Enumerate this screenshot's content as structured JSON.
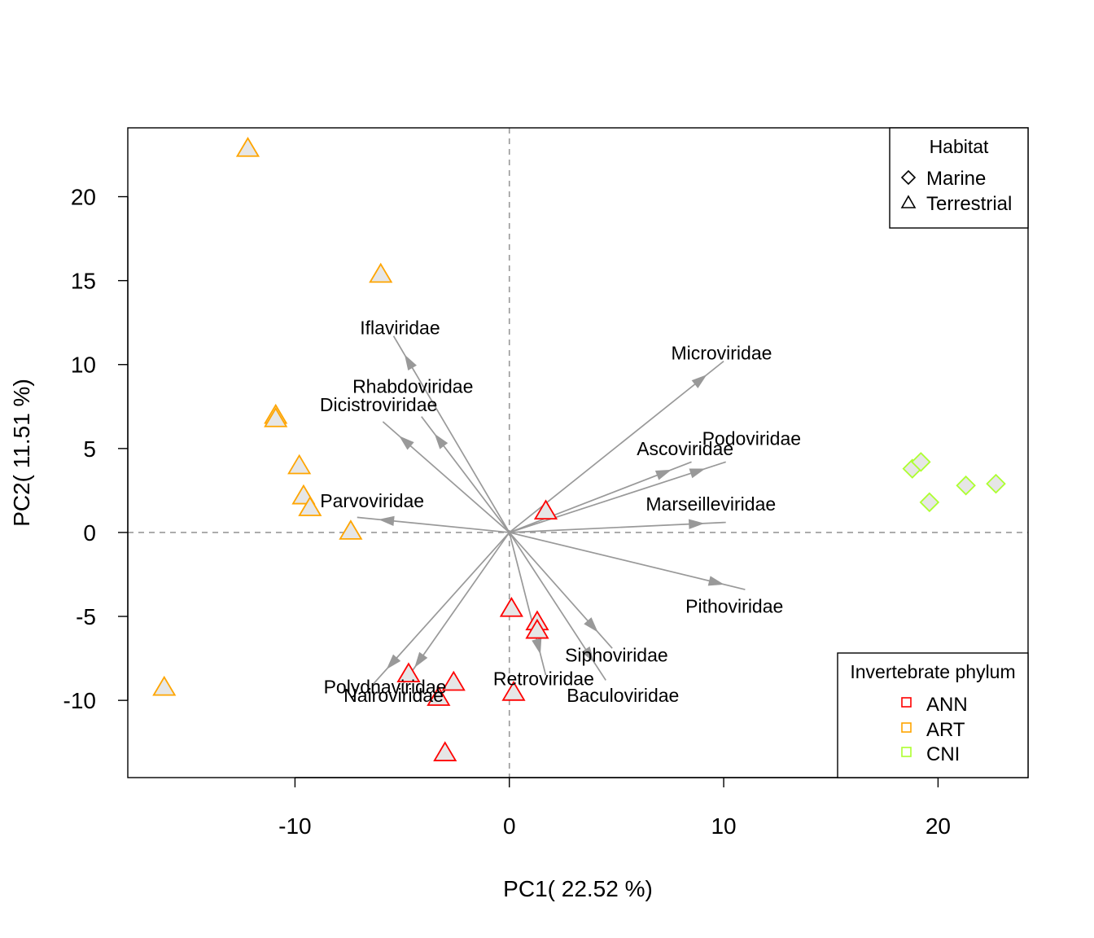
{
  "chart_data": {
    "type": "scatter",
    "xlabel": "PC1( 22.52 %)",
    "ylabel": "PC2( 11.51 %)",
    "xlim": [
      -17.8,
      24.2
    ],
    "ylim": [
      -14.6,
      24.1
    ],
    "xticks": [
      -10,
      0,
      10,
      20
    ],
    "xtick_labels": [
      "-10",
      "0",
      "10",
      "20"
    ],
    "yticks": [
      -10,
      -5,
      0,
      5,
      10,
      15,
      20
    ],
    "ytick_labels": [
      "-10",
      "-5",
      "0",
      "5",
      "10",
      "15",
      "20"
    ],
    "grid": false,
    "reference_lines": {
      "x": 0,
      "y": 0,
      "style": "dashed",
      "color": "#999999"
    },
    "point_fill": "#e6e6e6",
    "arrow_color": "#999999",
    "phylum_colors": {
      "ANN": "#ff0000",
      "ART": "#ffa500",
      "CNI": "#adff2f"
    },
    "series": [
      {
        "name": "ANN",
        "color": "#ff0000",
        "shape": "triangle",
        "points": [
          {
            "x": 1.7,
            "y": 1.3
          },
          {
            "x": 0.1,
            "y": -4.5
          },
          {
            "x": 1.3,
            "y": -5.3
          },
          {
            "x": 1.3,
            "y": -5.8
          },
          {
            "x": -4.7,
            "y": -8.4
          },
          {
            "x": -2.6,
            "y": -8.9
          },
          {
            "x": 0.2,
            "y": -9.5
          },
          {
            "x": -3.3,
            "y": -9.8
          },
          {
            "x": -3.0,
            "y": -13.1
          }
        ]
      },
      {
        "name": "ART",
        "color": "#ffa500",
        "shape": "triangle",
        "points": [
          {
            "x": -12.2,
            "y": 22.9
          },
          {
            "x": -6.0,
            "y": 15.4
          },
          {
            "x": -10.9,
            "y": 7.0
          },
          {
            "x": -10.9,
            "y": 6.8
          },
          {
            "x": -9.8,
            "y": 4.0
          },
          {
            "x": -9.6,
            "y": 2.2
          },
          {
            "x": -9.3,
            "y": 1.5
          },
          {
            "x": -7.4,
            "y": 0.1
          },
          {
            "x": -16.1,
            "y": -9.2
          }
        ]
      },
      {
        "name": "CNI",
        "color": "#adff2f",
        "shape": "diamond",
        "points": [
          {
            "x": 18.8,
            "y": 3.8
          },
          {
            "x": 19.2,
            "y": 4.2
          },
          {
            "x": 19.6,
            "y": 1.8
          },
          {
            "x": 21.3,
            "y": 2.8
          },
          {
            "x": 22.7,
            "y": 2.9
          }
        ]
      }
    ],
    "loadings": [
      {
        "name": "Iflaviridae",
        "x": -5.4,
        "y": 11.7,
        "label_x": -5.1,
        "label_y": 12.2
      },
      {
        "name": "Rhabdoviridae",
        "x": -4.1,
        "y": 6.9,
        "label_x": -4.5,
        "label_y": 8.7
      },
      {
        "name": "Dicistroviridae",
        "x": -5.9,
        "y": 6.6,
        "label_x": -6.1,
        "label_y": 7.6
      },
      {
        "name": "Parvoviridae",
        "x": -7.1,
        "y": 0.9,
        "label_x": -6.4,
        "label_y": 1.9
      },
      {
        "name": "Microviridae",
        "x": 10.0,
        "y": 10.2,
        "label_x": 9.9,
        "label_y": 10.7
      },
      {
        "name": "Ascoviridae",
        "x": 8.5,
        "y": 4.2,
        "label_x": 8.2,
        "label_y": 5.0
      },
      {
        "name": "Podoviridae",
        "x": 10.1,
        "y": 4.2,
        "label_x": 11.3,
        "label_y": 5.6
      },
      {
        "name": "Marseilleviridae",
        "x": 10.1,
        "y": 0.6,
        "label_x": 9.4,
        "label_y": 1.7
      },
      {
        "name": "Pithoviridae",
        "x": 11.0,
        "y": -3.4,
        "label_x": 10.5,
        "label_y": -4.4
      },
      {
        "name": "Siphoviridae",
        "x": 4.8,
        "y": -6.9,
        "label_x": 5.0,
        "label_y": -7.3
      },
      {
        "name": "Retroviridae",
        "x": 1.7,
        "y": -8.5,
        "label_x": 1.6,
        "label_y": -8.7
      },
      {
        "name": "Baculoviridae",
        "x": 4.5,
        "y": -8.8,
        "label_x": 5.3,
        "label_y": -9.7
      },
      {
        "name": "Polydnaviridae",
        "x": -6.4,
        "y": -9.1,
        "label_x": -5.8,
        "label_y": -9.2
      },
      {
        "name": "Nairoviridae",
        "x": -5.0,
        "y": -9.1,
        "label_x": -5.4,
        "label_y": -9.7
      }
    ],
    "legends": {
      "habitat": {
        "title": "Habitat",
        "position": "top-right",
        "entries": [
          {
            "label": "Marine",
            "shape": "diamond"
          },
          {
            "label": "Terrestrial",
            "shape": "triangle"
          }
        ]
      },
      "phylum": {
        "title": "Invertebrate phylum",
        "position": "bottom-right",
        "entries": [
          {
            "label": "ANN",
            "color": "#ff0000"
          },
          {
            "label": "ART",
            "color": "#ffa500"
          },
          {
            "label": "CNI",
            "color": "#adff2f"
          }
        ]
      }
    }
  }
}
